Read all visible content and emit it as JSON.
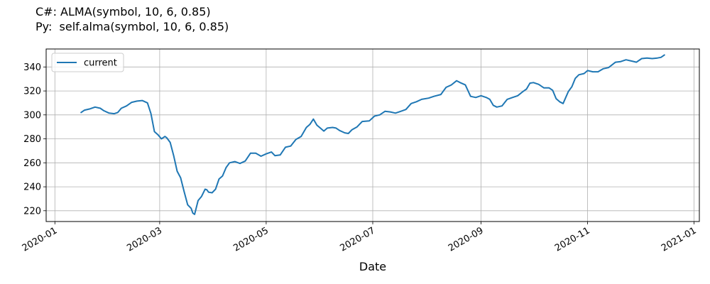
{
  "header": {
    "line1": "C#: ALMA(symbol, 10, 6, 0.85)",
    "line2": "Py:  self.alma(symbol, 10, 6, 0.85)"
  },
  "chart_data": {
    "type": "line",
    "xlabel": "Date",
    "ylabel": "",
    "grid": true,
    "legend_position": "top-left",
    "ylim": [
      211,
      355
    ],
    "xlim_days": [
      -5,
      369
    ],
    "x_ticks": [
      {
        "label": "2020-01",
        "day": 0
      },
      {
        "label": "2020-03",
        "day": 60
      },
      {
        "label": "2020-05",
        "day": 121
      },
      {
        "label": "2020-07",
        "day": 182
      },
      {
        "label": "2020-09",
        "day": 244
      },
      {
        "label": "2020-11",
        "day": 305
      },
      {
        "label": "2021-01",
        "day": 366
      }
    ],
    "y_ticks": [
      220,
      240,
      260,
      280,
      300,
      320,
      340
    ],
    "series": [
      {
        "name": "current",
        "color": "#1f77b4",
        "points": [
          [
            15,
            302
          ],
          [
            17,
            304
          ],
          [
            20,
            305
          ],
          [
            23,
            306.5
          ],
          [
            26,
            305.5
          ],
          [
            28,
            303.5
          ],
          [
            31,
            301.5
          ],
          [
            34,
            301
          ],
          [
            36,
            302
          ],
          [
            38,
            305.5
          ],
          [
            41,
            307.5
          ],
          [
            44,
            310.5
          ],
          [
            47,
            311.5
          ],
          [
            50,
            312
          ],
          [
            53,
            310
          ],
          [
            55,
            301
          ],
          [
            57,
            286
          ],
          [
            59,
            283.5
          ],
          [
            61,
            280
          ],
          [
            63,
            282
          ],
          [
            64,
            281
          ],
          [
            66,
            277
          ],
          [
            68,
            266
          ],
          [
            70,
            253
          ],
          [
            72,
            247.5
          ],
          [
            74,
            236
          ],
          [
            76,
            225
          ],
          [
            78,
            222
          ],
          [
            79,
            218
          ],
          [
            80,
            217
          ],
          [
            82,
            228.5
          ],
          [
            84,
            232
          ],
          [
            86,
            238
          ],
          [
            87,
            237.5
          ],
          [
            88,
            235.5
          ],
          [
            90,
            235
          ],
          [
            92,
            238
          ],
          [
            94,
            246.5
          ],
          [
            96,
            249
          ],
          [
            98,
            256
          ],
          [
            100,
            260
          ],
          [
            103,
            261
          ],
          [
            106,
            259.5
          ],
          [
            109,
            261.5
          ],
          [
            112,
            268
          ],
          [
            115,
            268
          ],
          [
            118,
            265.5
          ],
          [
            121,
            267.5
          ],
          [
            124,
            269
          ],
          [
            126,
            266
          ],
          [
            129,
            266.5
          ],
          [
            132,
            273
          ],
          [
            135,
            274
          ],
          [
            138,
            279.5
          ],
          [
            141,
            282
          ],
          [
            144,
            289.5
          ],
          [
            146,
            292
          ],
          [
            148,
            296.5
          ],
          [
            150,
            291.5
          ],
          [
            152,
            289
          ],
          [
            154,
            286.5
          ],
          [
            156,
            289
          ],
          [
            159,
            289.5
          ],
          [
            161,
            289
          ],
          [
            163,
            287
          ],
          [
            166,
            285
          ],
          [
            168,
            284.5
          ],
          [
            170,
            287.5
          ],
          [
            173,
            290
          ],
          [
            176,
            294.5
          ],
          [
            180,
            295
          ],
          [
            183,
            299
          ],
          [
            186,
            300
          ],
          [
            189,
            303
          ],
          [
            192,
            302.5
          ],
          [
            195,
            301.5
          ],
          [
            198,
            303
          ],
          [
            201,
            304.5
          ],
          [
            204,
            309.5
          ],
          [
            207,
            311
          ],
          [
            210,
            313
          ],
          [
            214,
            314
          ],
          [
            217,
            315.5
          ],
          [
            221,
            317
          ],
          [
            224,
            323
          ],
          [
            227,
            325
          ],
          [
            230,
            328.5
          ],
          [
            232,
            327
          ],
          [
            235,
            325
          ],
          [
            238,
            315.5
          ],
          [
            241,
            314.5
          ],
          [
            244,
            316
          ],
          [
            247,
            314.5
          ],
          [
            249,
            313
          ],
          [
            251,
            308
          ],
          [
            253,
            306.5
          ],
          [
            256,
            307.5
          ],
          [
            259,
            313
          ],
          [
            262,
            314.5
          ],
          [
            265,
            316
          ],
          [
            268,
            319.5
          ],
          [
            270,
            321.5
          ],
          [
            272,
            326.5
          ],
          [
            274,
            327
          ],
          [
            277,
            325.5
          ],
          [
            280,
            322.5
          ],
          [
            283,
            322.5
          ],
          [
            285,
            320.5
          ],
          [
            287,
            313.5
          ],
          [
            289,
            311
          ],
          [
            291,
            309.5
          ],
          [
            294,
            319.5
          ],
          [
            296,
            323.5
          ],
          [
            298,
            330.5
          ],
          [
            300,
            333.5
          ],
          [
            303,
            334.5
          ],
          [
            305,
            337
          ],
          [
            308,
            336
          ],
          [
            311,
            336
          ],
          [
            314,
            338.5
          ],
          [
            317,
            339.5
          ],
          [
            321,
            344
          ],
          [
            324,
            344.5
          ],
          [
            327,
            346
          ],
          [
            330,
            345
          ],
          [
            333,
            344
          ],
          [
            336,
            347
          ],
          [
            339,
            347.5
          ],
          [
            342,
            347
          ],
          [
            345,
            347.5
          ],
          [
            347,
            348
          ],
          [
            349,
            350
          ]
        ]
      }
    ]
  }
}
